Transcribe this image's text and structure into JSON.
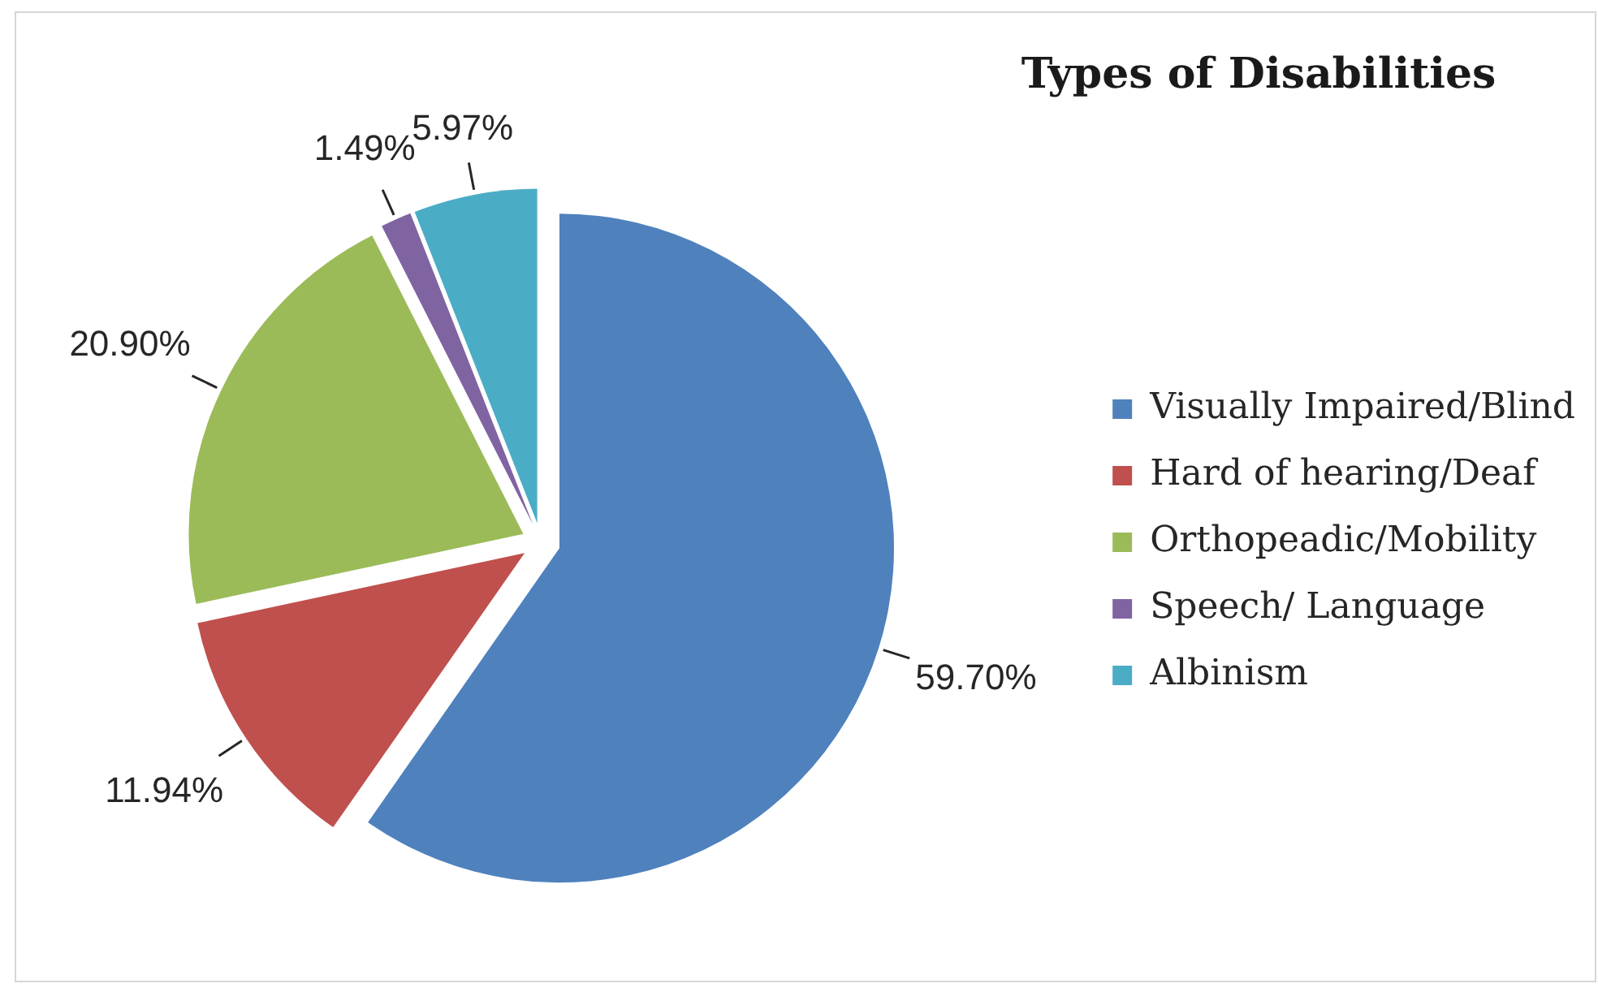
{
  "chart_data": {
    "type": "pie",
    "title": "Types of Disabilities",
    "categories": [
      "Visually Impaired/Blind",
      "Hard of hearing/Deaf",
      "Orthopeadic/Mobility",
      "Speech/ Language",
      "Albinism"
    ],
    "values": [
      59.7,
      11.94,
      20.9,
      1.49,
      5.97
    ],
    "colors": [
      "#4f81bd",
      "#c0504d",
      "#9bbb59",
      "#8064a2",
      "#4bacc6"
    ],
    "value_labels": [
      "59.70%",
      "11.94%",
      "20.90%",
      "1.49%",
      "5.97%"
    ],
    "legend": "right"
  }
}
